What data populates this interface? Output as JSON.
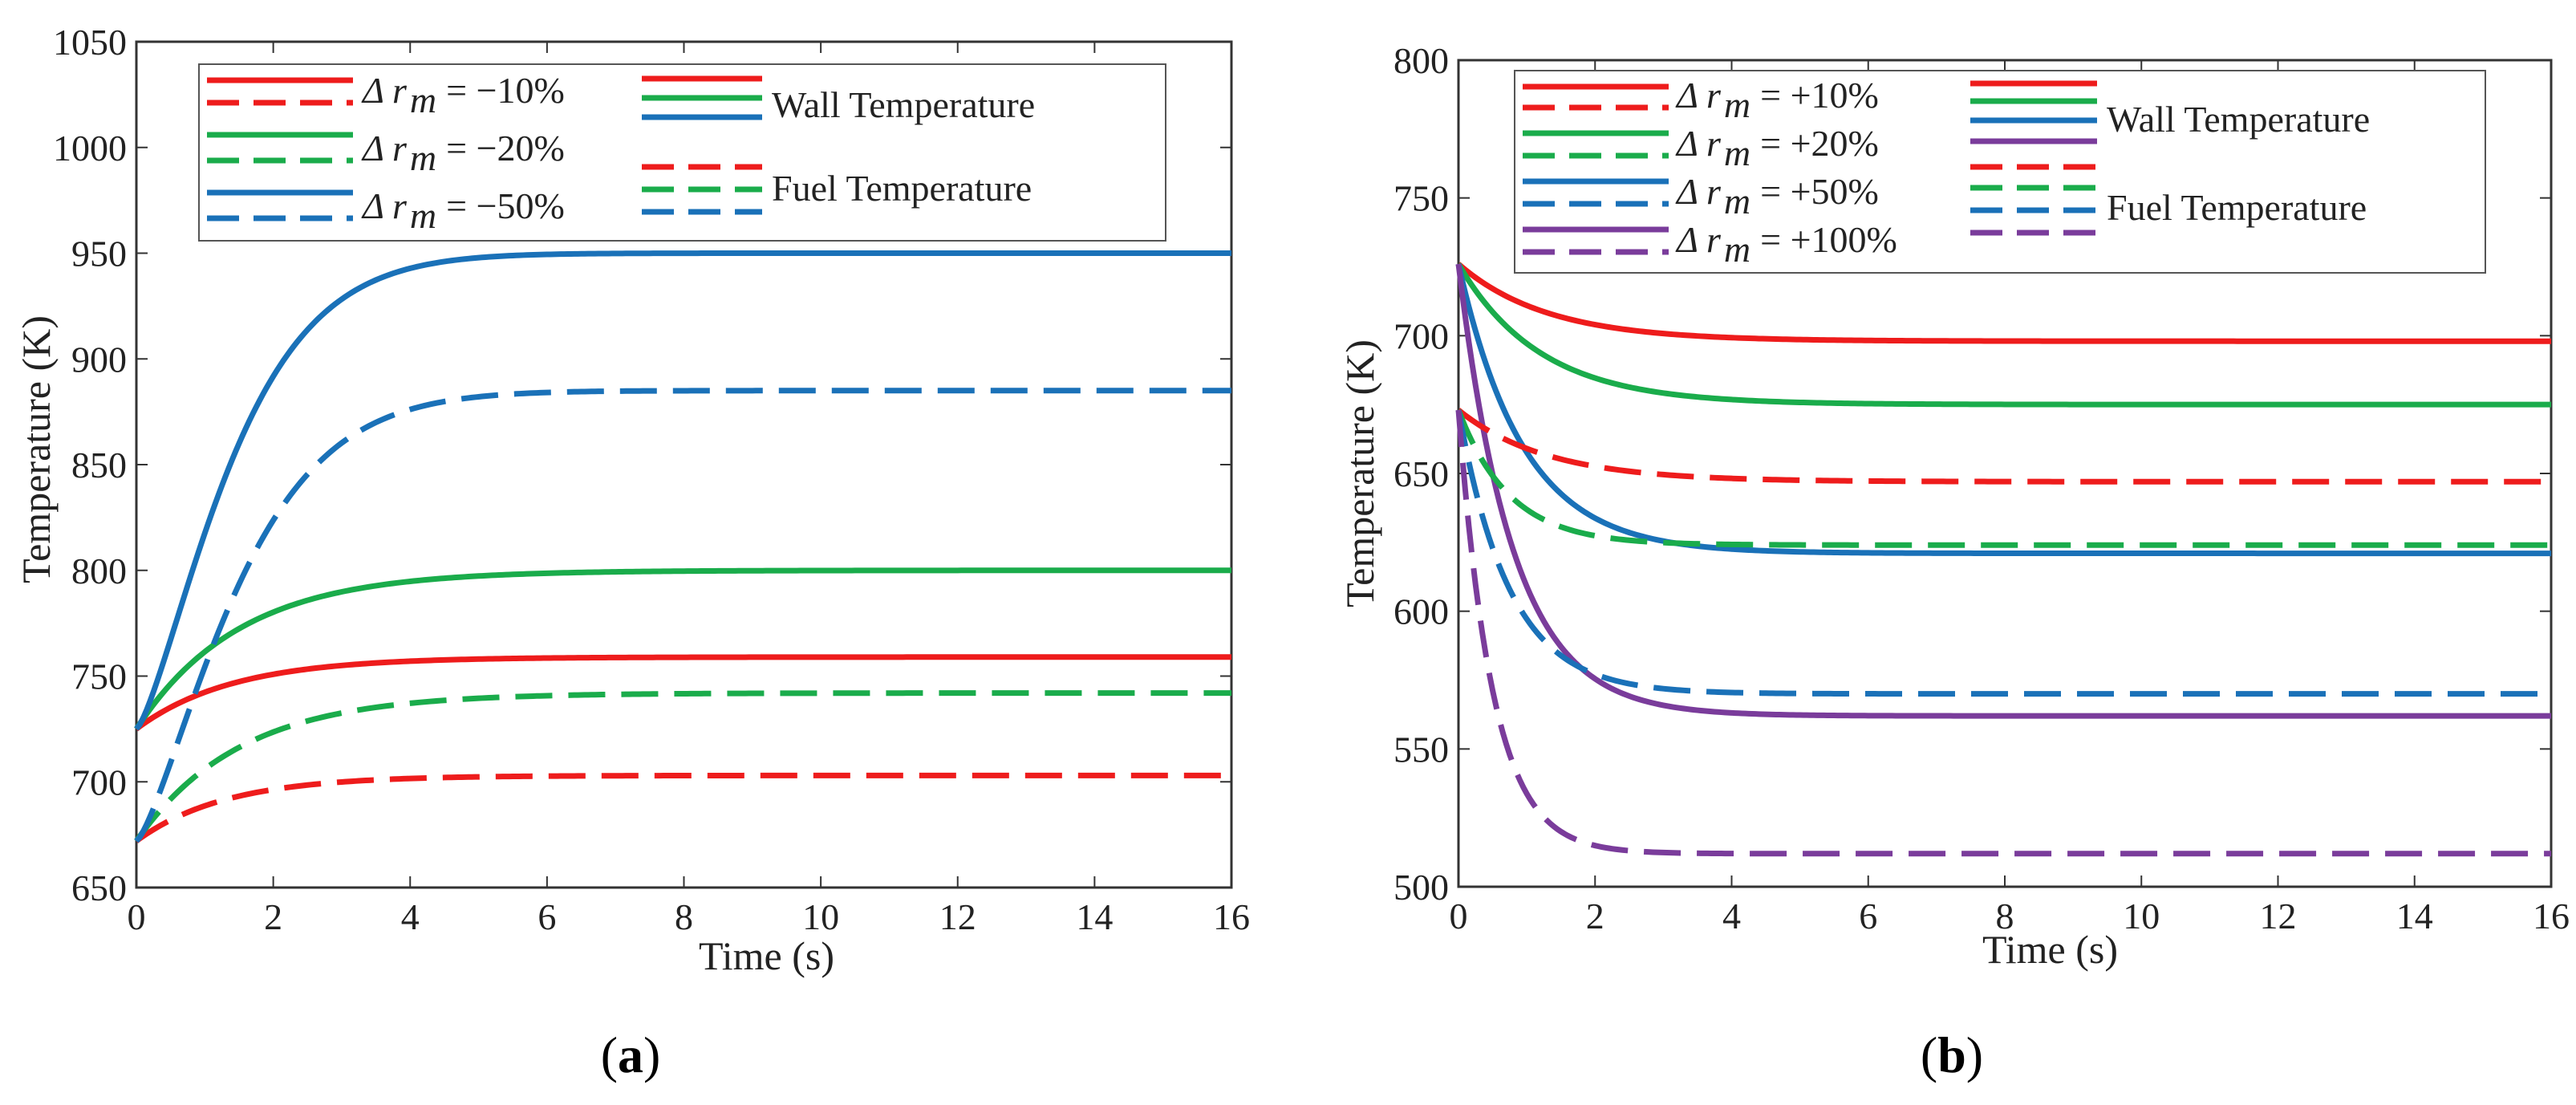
{
  "chart_data": [
    {
      "type": "line",
      "panel_label": "a",
      "xlabel": "Time (s)",
      "ylabel": "Temperature (K)",
      "xlim": [
        0,
        16
      ],
      "ylim": [
        650,
        1050
      ],
      "xticks": [
        0,
        2,
        4,
        6,
        8,
        10,
        12,
        14,
        16
      ],
      "yticks": [
        650,
        700,
        750,
        800,
        850,
        900,
        950,
        1000,
        1050
      ],
      "legend": {
        "delta_symbol": "Δ",
        "variable": "r",
        "subscript": "m",
        "group_wall": "Wall Temperature",
        "group_fuel": "Fuel Temperature",
        "entries": [
          "= −10%",
          "= −20%",
          "= −50%"
        ]
      },
      "series": [
        {
          "name": "Δr_m = −10% Wall Temperature",
          "color": "#ee1c1c",
          "style": "solid",
          "start": 725,
          "end": 759,
          "tau": 1.4,
          "kind": "rise"
        },
        {
          "name": "Δr_m = −20% Wall Temperature",
          "color": "#1aac4b",
          "style": "solid",
          "start": 725,
          "end": 800,
          "tau": 1.5,
          "kind": "rise"
        },
        {
          "name": "Δr_m = −50% Wall Temperature",
          "color": "#1a71b8",
          "style": "solid",
          "start": 725,
          "end": 950,
          "tau": 1.6,
          "kind": "s-rise"
        },
        {
          "name": "Δr_m = −10% Fuel Temperature",
          "color": "#ee1c1c",
          "style": "dashed",
          "start": 672,
          "end": 703,
          "tau": 1.3,
          "kind": "rise"
        },
        {
          "name": "Δr_m = −20% Fuel Temperature",
          "color": "#1aac4b",
          "style": "dashed",
          "start": 672,
          "end": 742,
          "tau": 1.5,
          "kind": "rise"
        },
        {
          "name": "Δr_m = −50% Fuel Temperature",
          "color": "#1a71b8",
          "style": "dashed",
          "start": 672,
          "end": 885,
          "tau": 1.7,
          "kind": "s-rise"
        }
      ]
    },
    {
      "type": "line",
      "panel_label": "b",
      "xlabel": "Time (s)",
      "ylabel": "Temperature (K)",
      "xlim": [
        0,
        16
      ],
      "ylim": [
        500,
        800
      ],
      "xticks": [
        0,
        2,
        4,
        6,
        8,
        10,
        12,
        14,
        16
      ],
      "yticks": [
        500,
        550,
        600,
        650,
        700,
        750,
        800
      ],
      "legend": {
        "delta_symbol": "Δ",
        "variable": "r",
        "subscript": "m",
        "group_wall": "Wall Temperature",
        "group_fuel": "Fuel Temperature",
        "entries": [
          "= +10%",
          "= +20%",
          "= +50%",
          "= +100%"
        ]
      },
      "series": [
        {
          "name": "Δr_m = +10% Wall Temperature",
          "color": "#ee1c1c",
          "style": "solid",
          "start": 726,
          "end": 698,
          "tau": 1.3,
          "kind": "decay"
        },
        {
          "name": "Δr_m = +20% Wall Temperature",
          "color": "#1aac4b",
          "style": "solid",
          "start": 726,
          "end": 675,
          "tau": 1.2,
          "kind": "decay"
        },
        {
          "name": "Δr_m = +50% Wall Temperature",
          "color": "#1a71b8",
          "style": "solid",
          "start": 726,
          "end": 621,
          "tau": 0.95,
          "kind": "decay"
        },
        {
          "name": "Δr_m = +100% Wall Temperature",
          "color": "#7a3c9b",
          "style": "solid",
          "start": 726,
          "end": 562,
          "tau": 0.8,
          "kind": "decay"
        },
        {
          "name": "Δr_m = +10% Fuel Temperature",
          "color": "#ee1c1c",
          "style": "dashed",
          "start": 673,
          "end": 647,
          "tau": 1.3,
          "kind": "decay"
        },
        {
          "name": "Δr_m = +20% Fuel Temperature",
          "color": "#1aac4b",
          "style": "dashed",
          "start": 673,
          "end": 624,
          "tau": 0.75,
          "kind": "decay"
        },
        {
          "name": "Δr_m = +50% Fuel Temperature",
          "color": "#1a71b8",
          "style": "dashed",
          "start": 673,
          "end": 570,
          "tau": 0.75,
          "kind": "decay"
        },
        {
          "name": "Δr_m = +100% Fuel Temperature",
          "color": "#7a3c9b",
          "style": "dashed",
          "start": 673,
          "end": 512,
          "tau": 0.5,
          "kind": "decay"
        }
      ]
    }
  ]
}
